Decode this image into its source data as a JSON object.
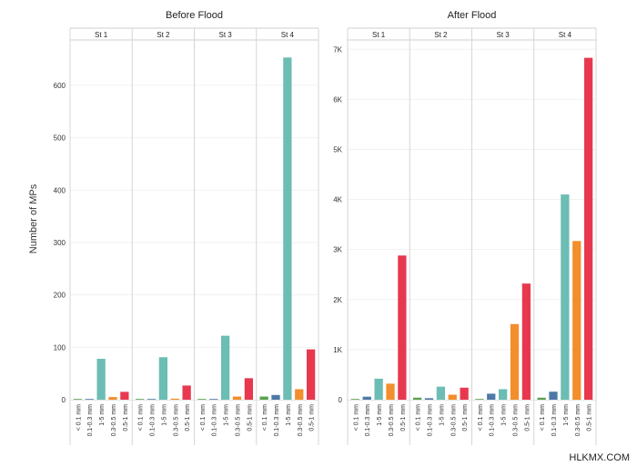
{
  "y_axis_label": "Number of MPs",
  "watermark": "HLKMX.COM",
  "colors": {
    "< 0.1 mm": "#59a14f",
    "0.1-0.3 mm": "#4e79a7",
    "1-5 mm": "#6cbdb3",
    "0.3-0.5 mm": "#f28e2b",
    "0.5-1 mm": "#e8384f"
  },
  "chart_data": [
    {
      "type": "bar",
      "title": "Before Flood",
      "ylabel": "Number of MPs",
      "panels": [
        "St 1",
        "St 2",
        "St 3",
        "St 4"
      ],
      "categories": [
        "< 0.1 mm",
        "0.1-0.3 mm",
        "1-5 mm",
        "0.3-0.5 mm",
        "0.5-1 mm"
      ],
      "values": [
        [
          0,
          1,
          78,
          5,
          15
        ],
        [
          0,
          1,
          81,
          2,
          27
        ],
        [
          1,
          1,
          122,
          6,
          41
        ],
        [
          6,
          9,
          653,
          20,
          96
        ]
      ],
      "ylim": [
        0,
        683
      ],
      "yticks": [
        0,
        100,
        200,
        300,
        400,
        500,
        600
      ],
      "ytick_labels": [
        "0",
        "100",
        "200",
        "300",
        "400",
        "500",
        "600"
      ]
    },
    {
      "type": "bar",
      "title": "After Flood",
      "ylabel": "",
      "panels": [
        "St 1",
        "St 2",
        "St 3",
        "St 4"
      ],
      "categories": [
        "< 0.1 mm",
        "0.1-0.3 mm",
        "1-5 mm",
        "0.3-0.5 mm",
        "0.5-1 mm"
      ],
      "values": [
        [
          10,
          60,
          420,
          320,
          2880
        ],
        [
          40,
          30,
          260,
          100,
          240
        ],
        [
          10,
          120,
          210,
          1510,
          2320
        ],
        [
          40,
          160,
          4100,
          3170,
          6830
        ]
      ],
      "ylim": [
        0,
        7150
      ],
      "yticks": [
        0,
        1000,
        2000,
        3000,
        4000,
        5000,
        6000,
        7000
      ],
      "ytick_labels": [
        "0",
        "1K",
        "2K",
        "3K",
        "4K",
        "5K",
        "6K",
        "7K"
      ]
    }
  ]
}
